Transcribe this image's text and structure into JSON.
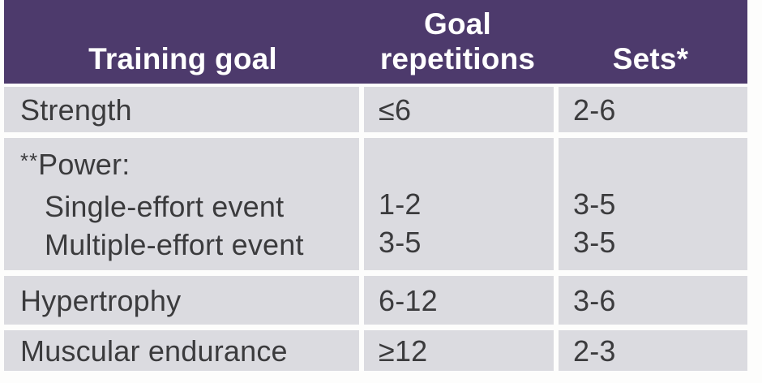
{
  "colors": {
    "header_bg": "#4d3a6c",
    "header_text": "#ffffff",
    "row_bg": "#dbdbe0",
    "body_text": "#3b3b3d",
    "page_bg": "#fdfdfc"
  },
  "table": {
    "header": {
      "training_goal": "Training goal",
      "goal_repetitions_lines": [
        "Goal",
        "repetitions"
      ],
      "sets": "Sets*"
    },
    "rows": [
      {
        "goal_lines": [
          "Strength"
        ],
        "reps_lines": [
          "≤6"
        ],
        "sets_lines": [
          "2-6"
        ]
      },
      {
        "goal_lines": [
          "**Power:",
          "Single-effort event",
          "Multiple-effort event"
        ],
        "reps_lines": [
          "",
          "1-2",
          "3-5"
        ],
        "sets_lines": [
          "",
          "3-5",
          "3-5"
        ]
      },
      {
        "goal_lines": [
          "Hypertrophy"
        ],
        "reps_lines": [
          "6-12"
        ],
        "sets_lines": [
          "3-6"
        ]
      },
      {
        "goal_lines": [
          "Muscular endurance"
        ],
        "reps_lines": [
          "≥12"
        ],
        "sets_lines": [
          "2-3"
        ]
      }
    ]
  },
  "chart_data": {
    "type": "table",
    "columns": [
      "Training goal",
      "Goal repetitions",
      "Sets*"
    ],
    "rows": [
      [
        "Strength",
        "≤6",
        "2-6"
      ],
      [
        "**Power: Single-effort event",
        "1-2",
        "3-5"
      ],
      [
        "**Power: Multiple-effort event",
        "3-5",
        "3-5"
      ],
      [
        "Hypertrophy",
        "6-12",
        "3-6"
      ],
      [
        "Muscular endurance",
        "≥12",
        "2-3"
      ]
    ],
    "footnote_markers": [
      "*",
      "**"
    ],
    "legend_position": "none",
    "title": ""
  }
}
